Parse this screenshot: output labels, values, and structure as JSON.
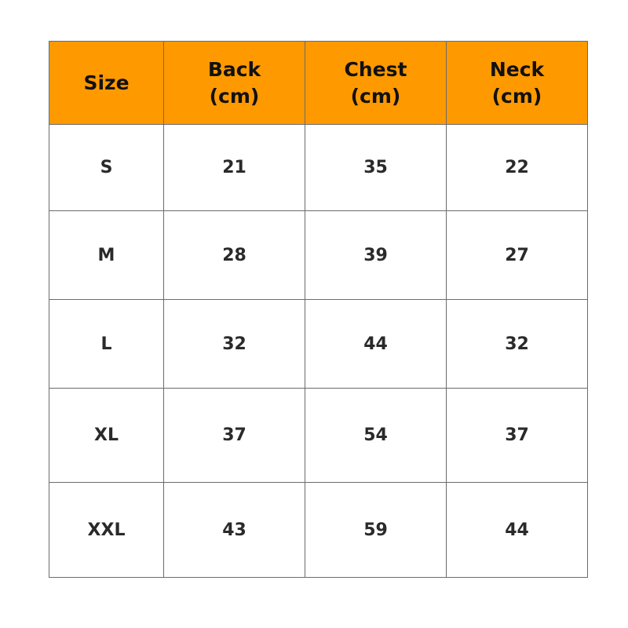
{
  "colors": {
    "header_bg": "#FF9900",
    "border": "#6b6b6b"
  },
  "headers": [
    {
      "line1": "Size",
      "line2": ""
    },
    {
      "line1": "Back",
      "line2": "(cm)"
    },
    {
      "line1": "Chest",
      "line2": "(cm)"
    },
    {
      "line1": "Neck",
      "line2": "(cm)"
    }
  ],
  "rows": [
    [
      "S",
      "21",
      "35",
      "22"
    ],
    [
      "M",
      "28",
      "39",
      "27"
    ],
    [
      "L",
      "32",
      "44",
      "32"
    ],
    [
      "XL",
      "37",
      "54",
      "37"
    ],
    [
      "XXL",
      "43",
      "59",
      "44"
    ]
  ]
}
